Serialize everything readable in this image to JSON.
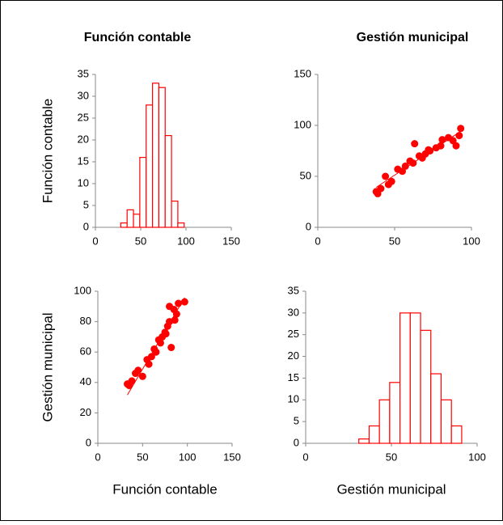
{
  "chart_data": [
    {
      "type": "histogram",
      "title": "Función contable",
      "ylabel": "Función contable",
      "color": "#ff0000",
      "bins": [
        28,
        35,
        42,
        49,
        56,
        63,
        70,
        77,
        84,
        91,
        98
      ],
      "values": [
        1,
        4,
        3,
        16,
        28,
        33,
        32,
        21,
        6,
        1
      ],
      "xlim": [
        0,
        150
      ],
      "xticks": [
        0,
        50,
        100,
        150
      ],
      "ylim": [
        0,
        35
      ],
      "yticks": [
        0,
        5,
        10,
        15,
        20,
        25,
        30,
        35
      ]
    },
    {
      "type": "scatter",
      "title": "Gestión municipal",
      "color": "#ff0000",
      "x": [
        39,
        41,
        46,
        44,
        55,
        57,
        62,
        60,
        66,
        70,
        73,
        77,
        80,
        90,
        88,
        85,
        92,
        93,
        63,
        48,
        52,
        68,
        72,
        81,
        38
      ],
      "values": [
        33,
        38,
        42,
        50,
        55,
        60,
        63,
        65,
        70,
        72,
        75,
        78,
        80,
        80,
        85,
        88,
        90,
        97,
        82,
        45,
        57,
        68,
        76,
        86,
        35
      ],
      "xlim": [
        0,
        100
      ],
      "xticks": [
        0,
        50,
        100
      ],
      "ylim": [
        0,
        150
      ],
      "yticks": [
        0,
        50,
        100,
        150
      ]
    },
    {
      "type": "scatter",
      "xlabel": "Función contable",
      "ylabel": "Gestión municipal",
      "color": "#ff0000",
      "x": [
        33,
        38,
        42,
        50,
        55,
        60,
        63,
        65,
        70,
        72,
        75,
        78,
        80,
        80,
        85,
        88,
        90,
        97,
        82,
        45,
        57,
        68,
        76,
        86,
        35
      ],
      "values": [
        39,
        41,
        46,
        44,
        55,
        57,
        62,
        60,
        66,
        70,
        73,
        77,
        80,
        90,
        88,
        85,
        92,
        93,
        63,
        48,
        52,
        68,
        72,
        81,
        38
      ],
      "xlim": [
        0,
        150
      ],
      "xticks": [
        0,
        50,
        100,
        150
      ],
      "ylim": [
        0,
        100
      ],
      "yticks": [
        0,
        20,
        40,
        60,
        80,
        100
      ]
    },
    {
      "type": "histogram",
      "xlabel": "Gestión municipal",
      "color": "#ff0000",
      "bins": [
        31,
        37,
        43,
        49,
        55,
        61,
        67,
        73,
        79,
        85,
        91
      ],
      "values": [
        1,
        4,
        10,
        14,
        30,
        30,
        26,
        16,
        10,
        4
      ],
      "xlim": [
        0,
        100
      ],
      "xticks": [
        0,
        50,
        100
      ],
      "ylim": [
        0,
        35
      ],
      "yticks": [
        0,
        5,
        10,
        15,
        20,
        25,
        30,
        35
      ]
    }
  ]
}
